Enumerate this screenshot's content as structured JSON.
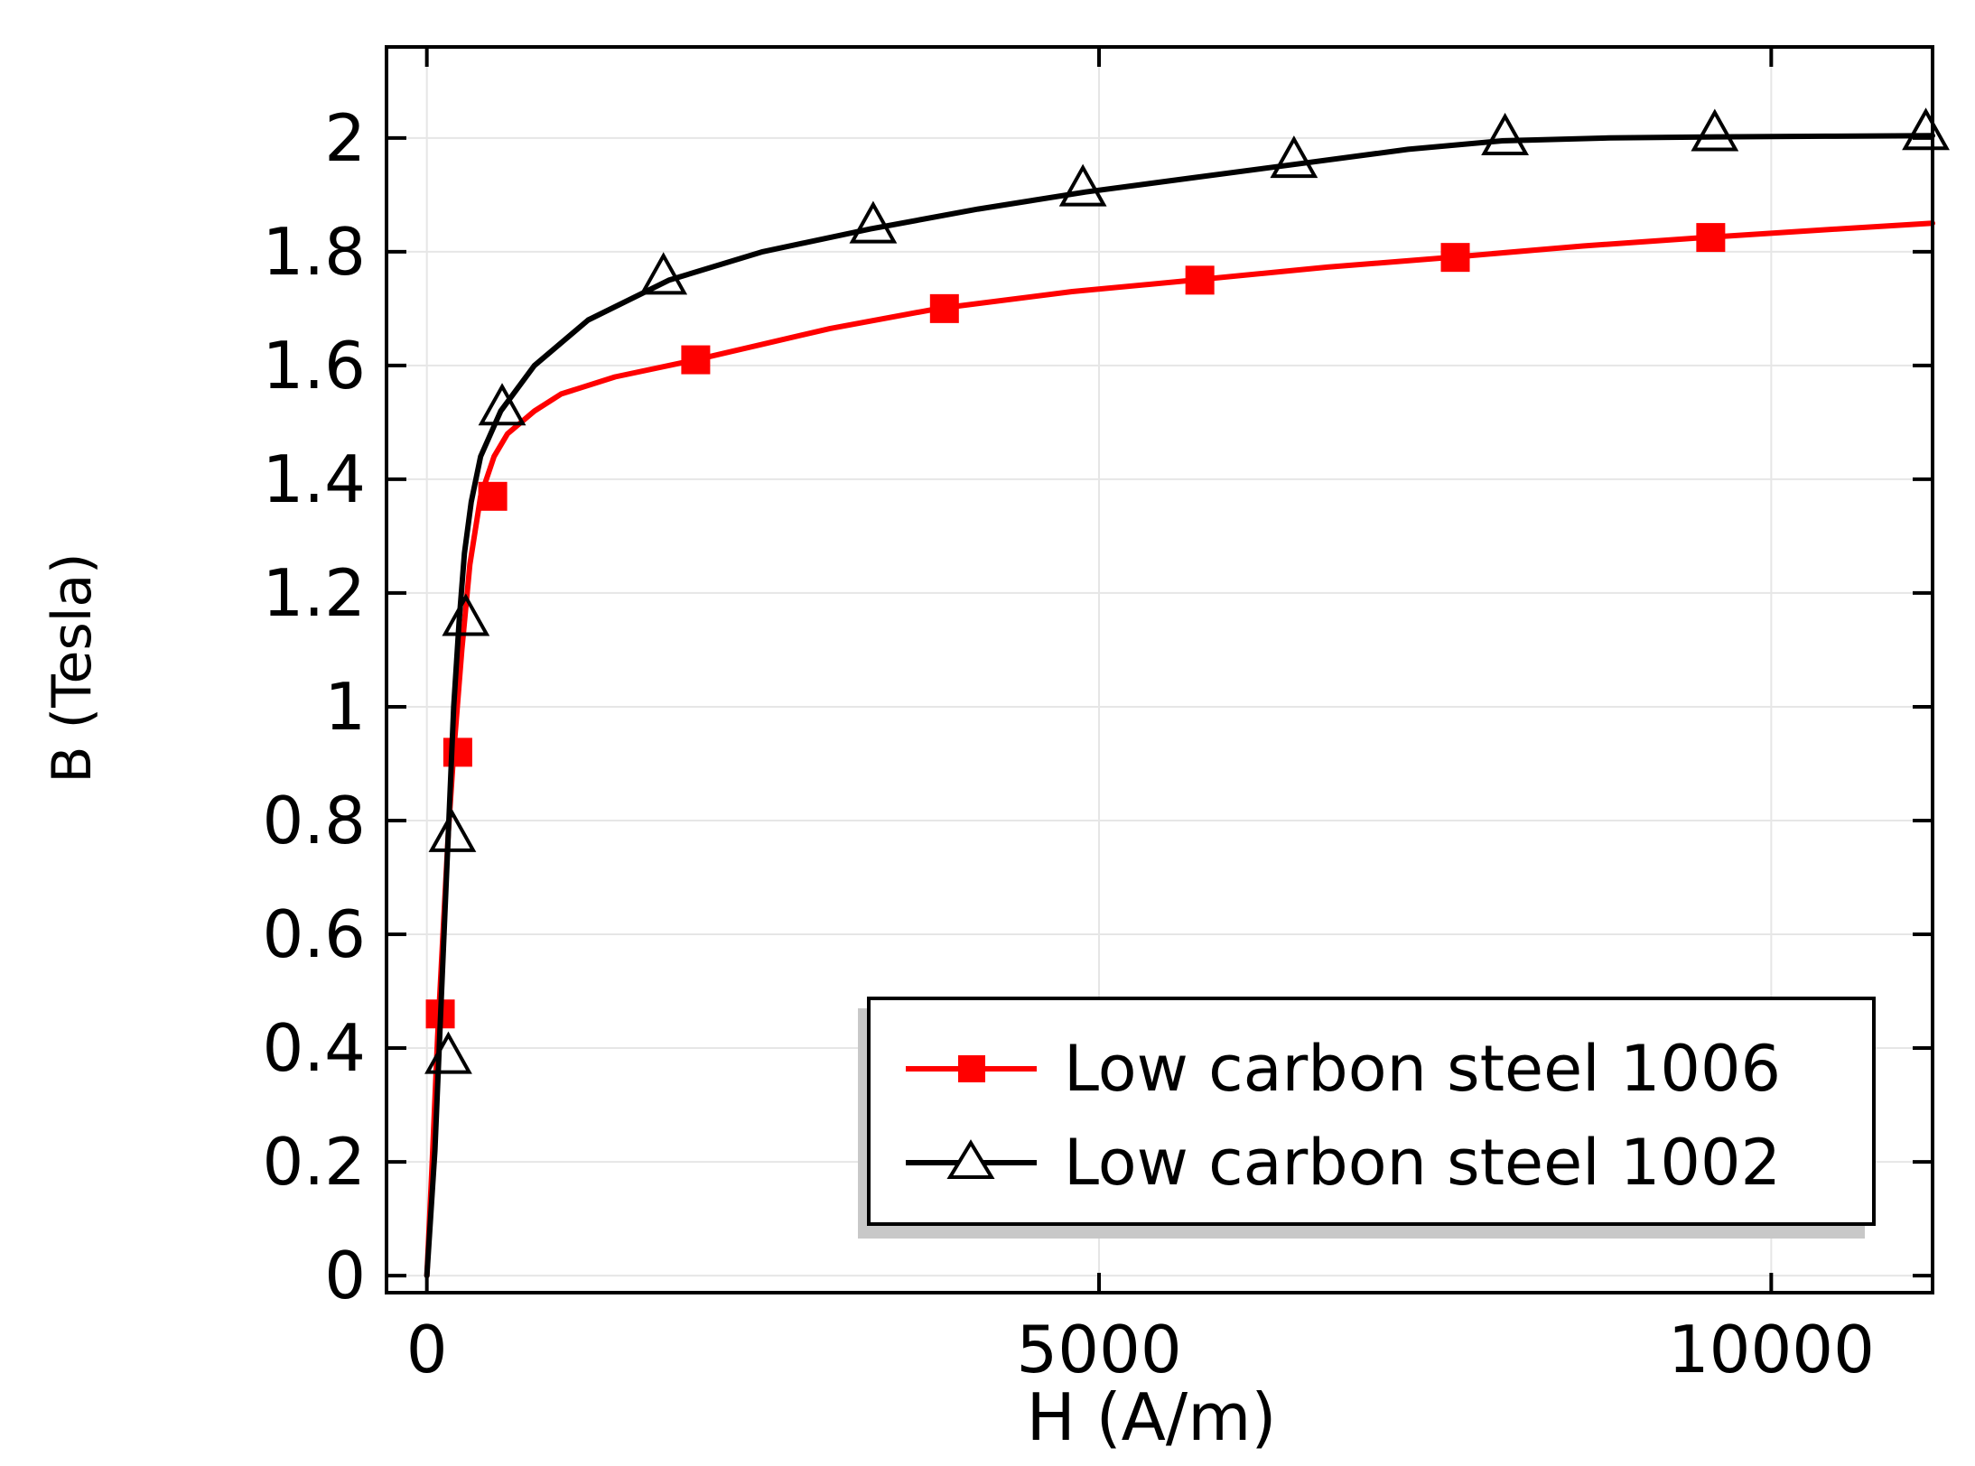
{
  "chart_data": {
    "type": "line",
    "title": "",
    "xlabel": "H (A/m)",
    "ylabel": "B (Tesla)",
    "xlim": [
      -300,
      11200
    ],
    "ylim": [
      -0.03,
      2.16
    ],
    "xticks": [
      0,
      5000,
      10000
    ],
    "xtick_labels": [
      "0",
      "5000",
      "10000"
    ],
    "yticks": [
      0,
      0.2,
      0.4,
      0.6,
      0.8,
      1,
      1.2,
      1.4,
      1.6,
      1.8,
      2
    ],
    "ytick_labels": [
      "0",
      "0.2",
      "0.4",
      "0.6",
      "0.8",
      "1",
      "1.2",
      "1.4",
      "1.6",
      "1.8",
      "2"
    ],
    "grid": true,
    "legend_position": "bottom-right",
    "series": [
      {
        "name": "Low carbon steel 1006",
        "color": "#ff0000",
        "marker": "square",
        "x": [
          0,
          40,
          80,
          120,
          160,
          200,
          260,
          320,
          400,
          500,
          600,
          800,
          1000,
          1400,
          2000,
          3000,
          3800,
          4800,
          5700,
          6700,
          7600,
          8600,
          9500,
          10500,
          11200
        ],
        "y": [
          0,
          0.2,
          0.42,
          0.6,
          0.78,
          0.92,
          1.1,
          1.25,
          1.37,
          1.44,
          1.48,
          1.52,
          1.55,
          1.58,
          1.61,
          1.665,
          1.7,
          1.73,
          1.75,
          1.773,
          1.79,
          1.81,
          1.825,
          1.84,
          1.85
        ],
        "marker_x": [
          100,
          230,
          490,
          2000,
          3850,
          5750,
          7650,
          9550
        ],
        "marker_y": [
          0.46,
          0.92,
          1.37,
          1.61,
          1.7,
          1.75,
          1.79,
          1.825
        ]
      },
      {
        "name": "Low carbon steel 1002",
        "color": "#000000",
        "marker": "triangle",
        "x": [
          0,
          60,
          110,
          160,
          200,
          240,
          280,
          330,
          400,
          550,
          800,
          1200,
          1800,
          2500,
          3300,
          4100,
          4900,
          5700,
          6500,
          7300,
          8000,
          8800,
          9600,
          10400,
          11200
        ],
        "y": [
          0,
          0.22,
          0.5,
          0.78,
          1.0,
          1.15,
          1.27,
          1.36,
          1.44,
          1.52,
          1.6,
          1.68,
          1.75,
          1.8,
          1.84,
          1.875,
          1.905,
          1.93,
          1.955,
          1.98,
          1.995,
          2.0,
          2.002,
          2.003,
          2.004
        ],
        "marker_x": [
          160,
          190,
          290,
          560,
          1760,
          3320,
          4880,
          6450,
          8020,
          9580,
          11150
        ],
        "marker_y": [
          0.38,
          0.77,
          1.15,
          1.52,
          1.75,
          1.84,
          1.905,
          1.955,
          1.995,
          2.002,
          2.004
        ]
      }
    ]
  }
}
